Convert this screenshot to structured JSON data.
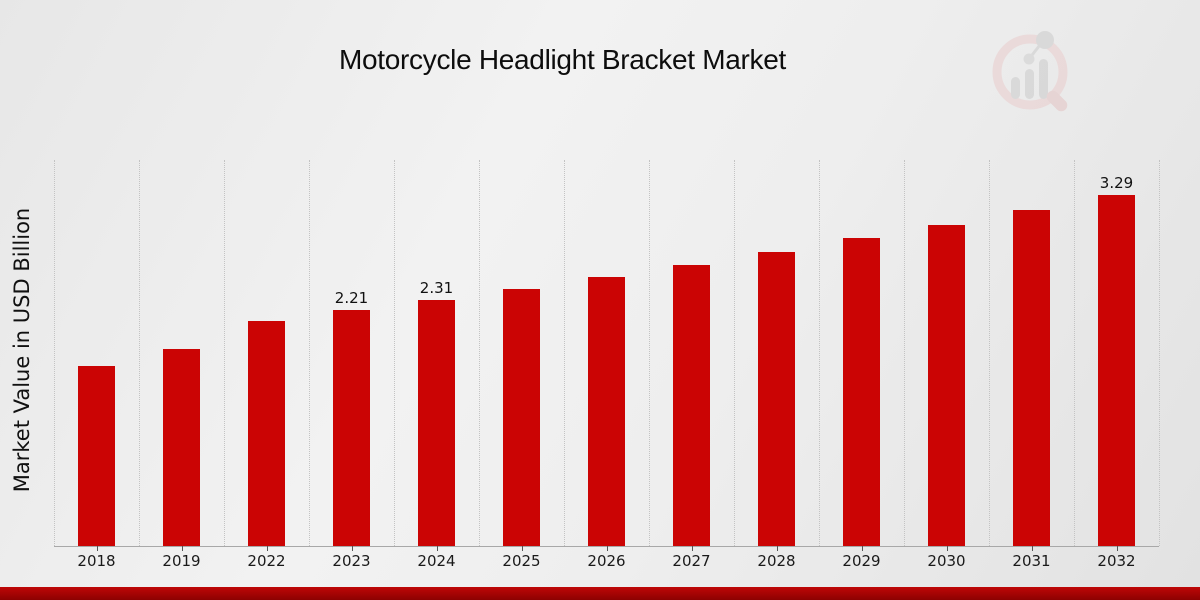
{
  "title": "Motorcycle Headlight Bracket Market",
  "ylabel": "Market Value in USD Billion",
  "colors": {
    "bar": "#cb0404",
    "accent_band_top": "#bf0707",
    "accent_band_bottom": "#8c0101",
    "background": "#ededed",
    "gridline": "#c3c3c3"
  },
  "watermark": "mrfr-magnifier-barchart-logo",
  "chart_data": {
    "type": "bar",
    "title": "Motorcycle Headlight Bracket Market",
    "xlabel": "",
    "ylabel": "Market Value in USD Billion",
    "categories": [
      "2018",
      "2019",
      "2022",
      "2023",
      "2024",
      "2025",
      "2026",
      "2027",
      "2028",
      "2029",
      "2030",
      "2031",
      "2032"
    ],
    "values": [
      1.69,
      1.85,
      2.11,
      2.21,
      2.31,
      2.41,
      2.52,
      2.64,
      2.76,
      2.89,
      3.01,
      3.15,
      3.29
    ],
    "value_labels": [
      "",
      "",
      "",
      "2.21",
      "2.31",
      "",
      "",
      "",
      "",
      "",
      "",
      "",
      "3.29"
    ],
    "ylim": [
      0,
      3.64
    ],
    "grid": "vertical-dotted",
    "legend": "none",
    "bar_color": "#cb0404"
  }
}
